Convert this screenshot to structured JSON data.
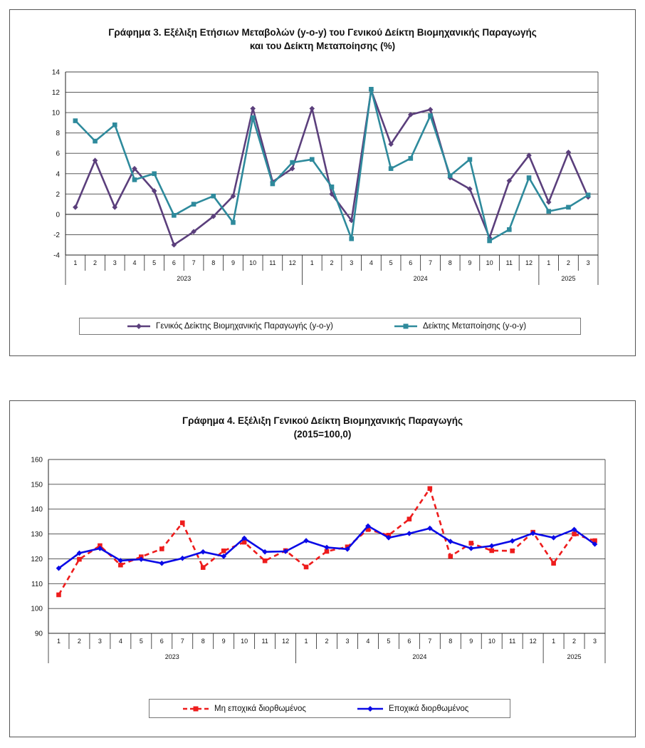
{
  "charts": [
    {
      "title_line1": "Γράφημα 3. Εξέλιξη Ετήσιων Μεταβολών (y-o-y) του Γενικού Δείκτη Βιομηχανικής Παραγωγής",
      "title_line2": "και του Δείκτη Μεταποίησης (%)"
    },
    {
      "title_line1": "Γράφημα 4. Εξέλιξη Γενικού Δείκτη Βιομηχανικής Παραγωγής",
      "title_line2": "(2015=100,0)"
    }
  ],
  "chart_data": [
    {
      "type": "line",
      "title": "Γράφημα 3. Εξέλιξη Ετήσιων Μεταβολών (y-o-y) του Γενικού Δείκτη Βιομηχανικής Παραγωγής και του Δείκτη Μεταποίησης (%)",
      "categories": [
        "1",
        "2",
        "3",
        "4",
        "5",
        "6",
        "7",
        "8",
        "9",
        "10",
        "11",
        "12",
        "1",
        "2",
        "3",
        "4",
        "5",
        "6",
        "7",
        "8",
        "9",
        "10",
        "11",
        "12",
        "1",
        "2",
        "3"
      ],
      "year_groups": [
        {
          "label": "2023",
          "count": 12
        },
        {
          "label": "2024",
          "count": 12
        },
        {
          "label": "2025",
          "count": 3
        }
      ],
      "ylim": [
        -4,
        14
      ],
      "yticks": [
        -4,
        -2,
        0,
        2,
        4,
        6,
        8,
        10,
        12,
        14
      ],
      "grid": true,
      "legend_position": "bottom",
      "series": [
        {
          "name": "Γενικός Δείκτης Βιομηχανικής Παραγωγής (y-o-y)",
          "color": "#5b3f7c",
          "marker": "diamond",
          "dashed": false,
          "values": [
            0.7,
            5.3,
            0.7,
            4.5,
            2.3,
            -3.0,
            -1.7,
            -0.2,
            1.8,
            10.4,
            3.2,
            4.5,
            10.4,
            2.0,
            -0.6,
            12.2,
            6.9,
            9.8,
            10.3,
            3.6,
            2.5,
            -2.3,
            3.3,
            5.8,
            1.2,
            6.1,
            1.7
          ]
        },
        {
          "name": "Δείκτης Μεταποίησης (y-o-y)",
          "color": "#2e8a9c",
          "marker": "square",
          "dashed": false,
          "values": [
            9.2,
            7.2,
            8.8,
            3.4,
            4.0,
            -0.1,
            1.0,
            1.8,
            -0.8,
            9.5,
            3.0,
            5.1,
            5.4,
            2.7,
            -2.4,
            12.3,
            4.5,
            5.5,
            9.7,
            3.8,
            5.4,
            -2.6,
            -1.5,
            3.6,
            0.3,
            0.7,
            1.9
          ]
        }
      ]
    },
    {
      "type": "line",
      "title": "Γράφημα 4. Εξέλιξη Γενικού Δείκτη Βιομηχανικής Παραγωγής (2015=100,0)",
      "categories": [
        "1",
        "2",
        "3",
        "4",
        "5",
        "6",
        "7",
        "8",
        "9",
        "10",
        "11",
        "12",
        "1",
        "2",
        "3",
        "4",
        "5",
        "6",
        "7",
        "8",
        "9",
        "10",
        "11",
        "12",
        "1",
        "2",
        "3"
      ],
      "year_groups": [
        {
          "label": "2023",
          "count": 12
        },
        {
          "label": "2024",
          "count": 12
        },
        {
          "label": "2025",
          "count": 3
        }
      ],
      "ylim": [
        90,
        160
      ],
      "yticks": [
        90,
        100,
        110,
        120,
        130,
        140,
        150,
        160
      ],
      "grid": true,
      "legend_position": "bottom",
      "series": [
        {
          "name": "Μη εποχικά διορθωμένος",
          "color": "#ee1c1c",
          "marker": "square",
          "dashed": true,
          "values": [
            105.5,
            119.8,
            125.3,
            117.5,
            120.8,
            124.0,
            134.5,
            116.5,
            123.2,
            126.7,
            119.2,
            123.3,
            116.7,
            123.0,
            124.8,
            131.8,
            129.5,
            136.0,
            148.3,
            121.0,
            126.3,
            123.3,
            123.2,
            130.7,
            118.2,
            130.0,
            127.3
          ]
        },
        {
          "name": "Εποχικά διορθωμένος",
          "color": "#0a0ae6",
          "marker": "diamond",
          "dashed": false,
          "values": [
            116.2,
            122.3,
            124.2,
            119.3,
            119.8,
            118.2,
            120.2,
            122.8,
            121.0,
            128.3,
            122.8,
            123.0,
            127.3,
            124.6,
            123.9,
            133.2,
            128.5,
            130.2,
            132.3,
            127.0,
            124.2,
            125.2,
            127.2,
            130.3,
            128.5,
            131.8,
            125.9
          ]
        }
      ]
    }
  ]
}
